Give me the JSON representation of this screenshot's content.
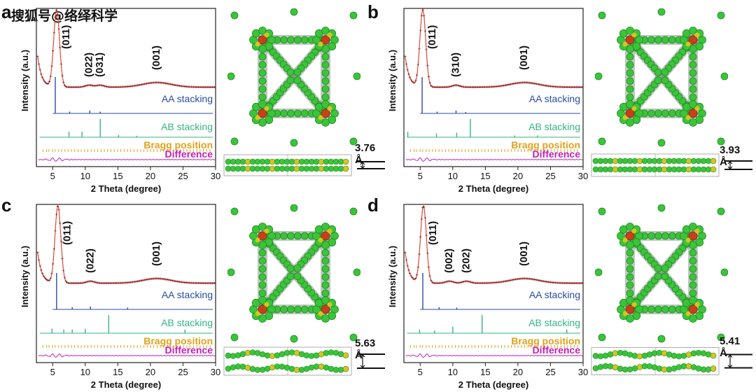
{
  "watermark": "搜狐号@络绎科学",
  "colors": {
    "obs": "#8b1a1a",
    "calc": "#d94a3a",
    "aa": "#2a4d9e",
    "ab": "#33b583",
    "bragg": "#e0a21c",
    "diff": "#c21fb5",
    "carbon": "#3bc43b",
    "carbon_dark": "#1f8a1f",
    "nitrogen": "#d6c420",
    "metal": "#c8401a",
    "hydrogen": "#e8e8e8"
  },
  "chart_data": [
    {
      "panel": "a",
      "type": "line",
      "xlabel": "2 Theta (degree)",
      "ylabel": "Intensity (a.u.)",
      "xlim": [
        2.5,
        30
      ],
      "xticks": [
        5,
        10,
        15,
        20,
        25,
        30
      ],
      "grid": false,
      "peaks": [
        {
          "label": "(011)",
          "x": 5.6
        },
        {
          "label": "(022)",
          "x": 10.6
        },
        {
          "label": "(031)",
          "x": 12.3
        },
        {
          "label": "(001)",
          "x": 21.0
        }
      ],
      "series": [
        {
          "name": "AA stacking",
          "peaks_x": [
            5.4,
            7.6,
            10.7,
            12.3
          ],
          "peaks_h": [
            1.0,
            0.05,
            0.08,
            0.05
          ]
        },
        {
          "name": "AB stacking",
          "peaks_x": [
            7.5,
            9.5,
            12.3,
            15.1,
            17.9
          ],
          "peaks_h": [
            0.3,
            0.3,
            1.0,
            0.12,
            0.08
          ]
        },
        {
          "name": "Bragg position"
        },
        {
          "name": "Difference"
        }
      ],
      "structure": {
        "interlayer_distance": "3.76 Å"
      }
    },
    {
      "panel": "b",
      "type": "line",
      "xlabel": "2 Theta (degree)",
      "ylabel": "Intensity (a.u.)",
      "xlim": [
        2.5,
        30
      ],
      "xticks": [
        5,
        10,
        15,
        20,
        25,
        30
      ],
      "grid": false,
      "peaks": [
        {
          "label": "(011)",
          "x": 5.4
        },
        {
          "label": "(310)",
          "x": 10.5
        },
        {
          "label": "(001)",
          "x": 21.0
        }
      ],
      "series": [
        {
          "name": "AA stacking",
          "peaks_x": [
            5.3,
            7.6,
            10.5,
            12.0
          ],
          "peaks_h": [
            1.0,
            0.05,
            0.08,
            0.04
          ]
        },
        {
          "name": "AB stacking",
          "peaks_x": [
            3.1,
            7.5,
            10.6,
            12.7,
            19.5,
            23.0
          ],
          "peaks_h": [
            0.3,
            0.2,
            0.25,
            1.0,
            0.1,
            0.1
          ]
        },
        {
          "name": "Bragg position"
        },
        {
          "name": "Difference"
        }
      ],
      "structure": {
        "interlayer_distance": "3.93 Å"
      }
    },
    {
      "panel": "c",
      "type": "line",
      "xlabel": "2 Theta (degree)",
      "ylabel": "Intensity (a.u.)",
      "xlim": [
        2.5,
        30
      ],
      "xticks": [
        5,
        10,
        15,
        20,
        25,
        30
      ],
      "grid": false,
      "peaks": [
        {
          "label": "(011)",
          "x": 5.8
        },
        {
          "label": "(022)",
          "x": 10.8
        },
        {
          "label": "(001)",
          "x": 21.0
        }
      ],
      "series": [
        {
          "name": "AA stacking",
          "peaks_x": [
            5.6,
            8.0,
            10.8,
            16.5
          ],
          "peaks_h": [
            1.0,
            0.06,
            0.08,
            0.05
          ]
        },
        {
          "name": "AB stacking",
          "peaks_x": [
            4.9,
            6.7,
            8.0,
            10.0,
            13.6,
            25.3
          ],
          "peaks_h": [
            0.25,
            0.2,
            0.2,
            0.25,
            1.0,
            0.2
          ]
        },
        {
          "name": "Bragg position"
        },
        {
          "name": "Difference"
        }
      ],
      "structure": {
        "interlayer_distance": "5.63 Å"
      }
    },
    {
      "panel": "d",
      "type": "line",
      "xlabel": "2 Theta (degree)",
      "ylabel": "Intensity (a.u.)",
      "xlim": [
        2.5,
        30
      ],
      "xticks": [
        5,
        10,
        15,
        20,
        25,
        30
      ],
      "grid": false,
      "peaks": [
        {
          "label": "(011)",
          "x": 5.5
        },
        {
          "label": "(002)",
          "x": 9.5
        },
        {
          "label": "(202)",
          "x": 12.1
        },
        {
          "label": "(001)",
          "x": 21.0
        }
      ],
      "series": [
        {
          "name": "AA stacking",
          "peaks_x": [
            5.4,
            7.9,
            10.6
          ],
          "peaks_h": [
            1.0,
            0.06,
            0.05
          ]
        },
        {
          "name": "AB stacking",
          "peaks_x": [
            4.9,
            7.2,
            10.0,
            14.5,
            27.5
          ],
          "peaks_h": [
            0.2,
            0.15,
            0.35,
            1.0,
            0.2
          ]
        },
        {
          "name": "Bragg position"
        },
        {
          "name": "Difference"
        }
      ],
      "structure": {
        "interlayer_distance": "5.41 Å"
      }
    }
  ]
}
